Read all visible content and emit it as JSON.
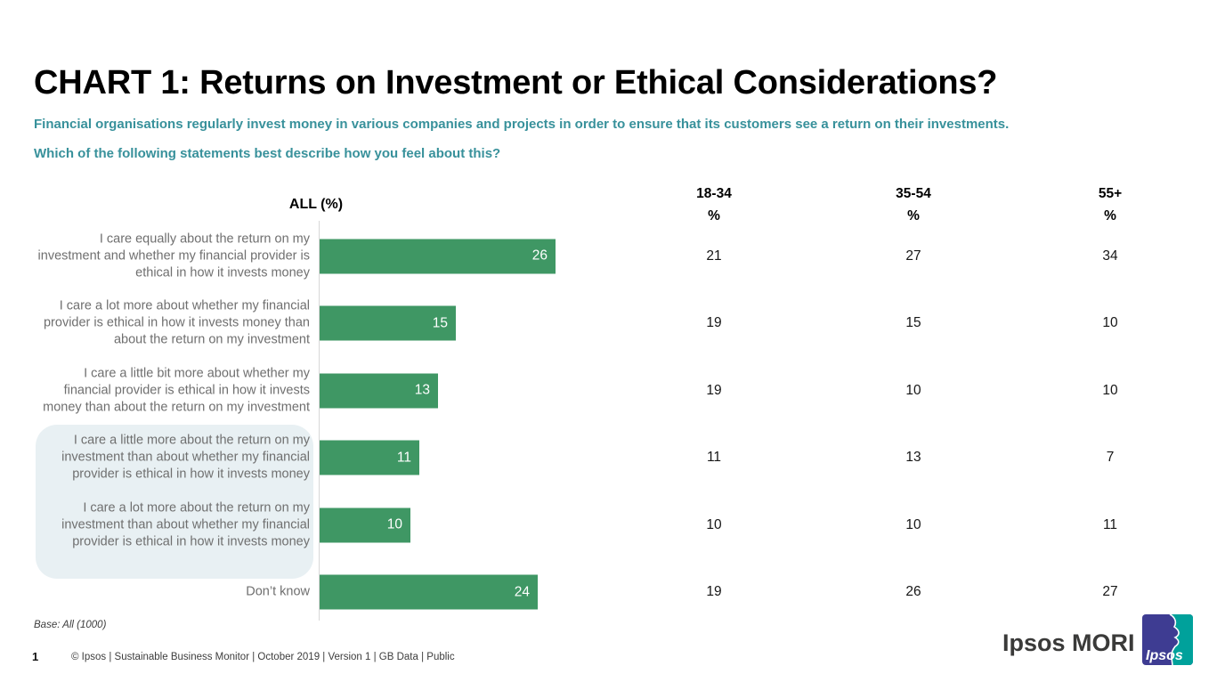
{
  "header": {
    "title": "CHART 1: Returns on Investment or Ethical Considerations?",
    "subtitle_line1": "Financial organisations regularly invest money in various companies and projects in order to ensure that its customers see a return on their investments.",
    "subtitle_line2": "Which of the following statements best describe how you feel about this?"
  },
  "columns": {
    "all": "ALL (%)",
    "ages": [
      "18-34",
      "35-54",
      "55+"
    ],
    "pct": "%"
  },
  "chart_data": {
    "type": "bar",
    "orientation": "horizontal",
    "title": "CHART 1: Returns on Investment or Ethical Considerations?",
    "categories": [
      "I care equally about the return on my investment and whether my financial provider is ethical in how it invests money",
      "I care a lot more about whether my financial provider is ethical in how it invests money than about the return on my investment",
      "I care a little bit more about whether my financial provider is ethical in how it invests money than about the return on my investment",
      "I care a little more about the return on my investment than about whether my financial provider is ethical in how it invests money",
      "I care a lot more about the return on my investment than about whether my financial provider is ethical in how it invests money",
      "Don’t know"
    ],
    "series": [
      {
        "name": "ALL (%)",
        "values": [
          26,
          15,
          13,
          11,
          10,
          24
        ]
      },
      {
        "name": "18-34 %",
        "values": [
          21,
          19,
          19,
          11,
          10,
          19
        ]
      },
      {
        "name": "35-54 %",
        "values": [
          27,
          15,
          10,
          13,
          10,
          26
        ]
      },
      {
        "name": "55+ %",
        "values": [
          34,
          10,
          10,
          7,
          11,
          27
        ]
      }
    ],
    "xlim": [
      0,
      35
    ],
    "grid": false,
    "legend": "none",
    "bar_color": "#3F9764",
    "value_label_color": "#FFFFFF",
    "highlighted_category_indexes": [
      3,
      4
    ],
    "highlight_color": "#E8F0F3"
  },
  "footer": {
    "base_note": "Base: All (1000)",
    "page_number": "1",
    "text": "© Ipsos | Sustainable Business Monitor | October 2019 | Version 1 | GB Data | Public",
    "brand": "Ipsos MORI",
    "logo_text": "Ipsos",
    "brand_teal": "#00A19B",
    "brand_indigo": "#3E3C92"
  }
}
